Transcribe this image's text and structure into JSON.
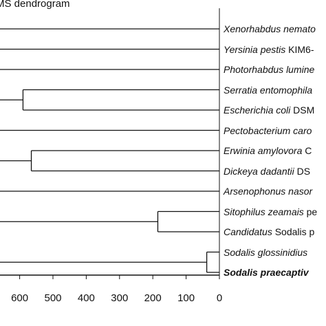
{
  "title": "MS dendrogram",
  "taxa": [
    {
      "genus_species": "Xenorhabdus nemato",
      "strain": "",
      "bold": false
    },
    {
      "genus_species": "Yersinia pestis",
      "strain": "KIM6-",
      "bold": false
    },
    {
      "genus_species": "Photorhabdus lumine",
      "strain": "",
      "bold": false
    },
    {
      "genus_species": "Serratia entomophila",
      "strain": "",
      "bold": false
    },
    {
      "genus_species": "Escherichia coli",
      "strain": "DSM",
      "bold": false
    },
    {
      "genus_species": "Pectobacterium caro",
      "strain": "",
      "bold": false
    },
    {
      "genus_species": "Erwinia amylovora",
      "strain": "C",
      "bold": false
    },
    {
      "genus_species": "Dickeya dadantii",
      "strain": "DS",
      "bold": false
    },
    {
      "genus_species": "Arsenophonus nasor",
      "strain": "",
      "bold": false
    },
    {
      "genus_species": "Sitophilus zeamais",
      "strain": "pe",
      "bold": false
    },
    {
      "genus_species": "Candidatus",
      "strain": "Sodalis p",
      "bold": false
    },
    {
      "genus_species": "Sodalis glossinidius",
      "strain": "",
      "bold": false
    },
    {
      "genus_species": "Sodalis praecaptiv",
      "strain": "",
      "bold": true
    }
  ],
  "clades": [
    {
      "members": [
        3,
        4
      ],
      "height": 590
    },
    {
      "members": [
        6,
        7
      ],
      "height": 565
    },
    {
      "members": [
        9,
        10
      ],
      "height": 185
    },
    {
      "members": [
        11,
        12
      ],
      "height": 38
    }
  ],
  "axis": {
    "min": 0,
    "max": 700,
    "ticks": [
      600,
      500,
      400,
      300,
      200,
      100,
      0
    ],
    "tick_labels": [
      "600",
      "500",
      "400",
      "300",
      "200",
      "100",
      "0"
    ],
    "partial_label": "6"
  },
  "colors": {
    "line": "#111111",
    "background": "#ffffff"
  }
}
